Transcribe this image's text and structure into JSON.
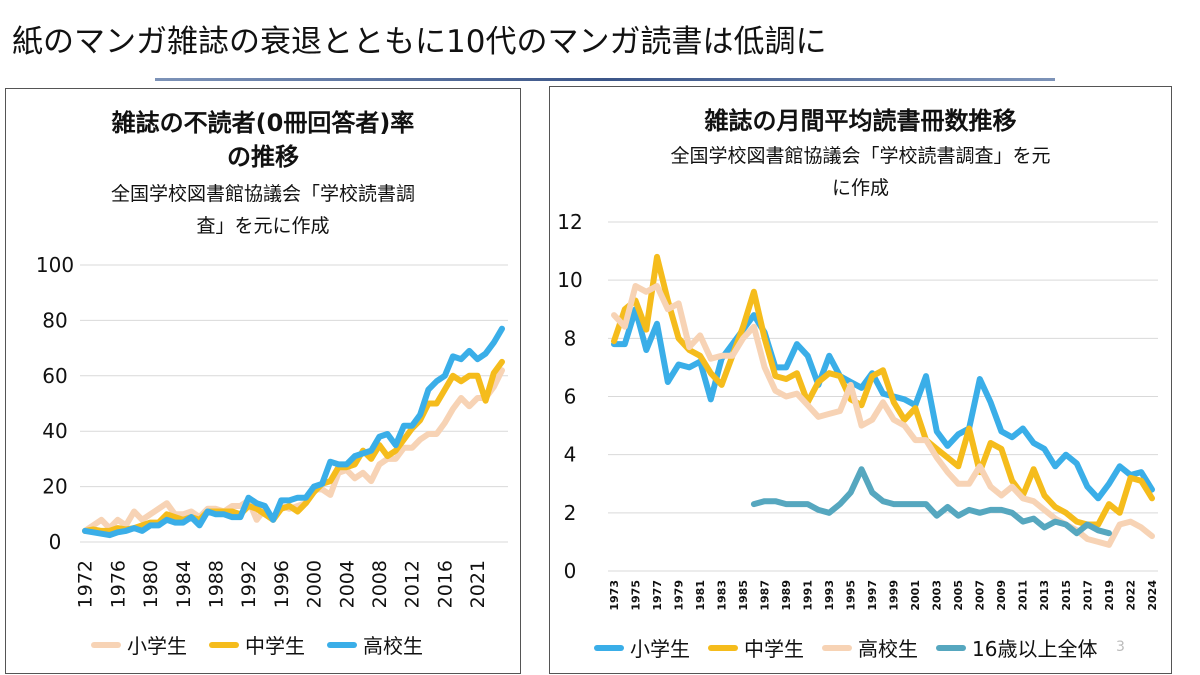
{
  "slide": {
    "title": "紙のマンガ雑誌の衰退とともに10代のマンガ読書は低調に",
    "page_number": "3"
  },
  "colors": {
    "elementary": "#3aaee8",
    "middle": "#f5bc1c",
    "high": "#f7d3b5",
    "over16": "#56a7bf",
    "grid": "#d9d9d9",
    "rule": "#3b5588"
  },
  "chart_data": [
    {
      "type": "line",
      "title_line1": "雑誌の不読者(0冊回答者)率",
      "title_line2": "の推移",
      "subtitle_line1": "全国学校図書館協議会「学校読書調",
      "subtitle_line2": "査」を元に作成",
      "xlabel": "",
      "ylabel": "",
      "ylim": [
        0,
        100
      ],
      "yticks": [
        0,
        20,
        40,
        60,
        80,
        100
      ],
      "grid": true,
      "legend": "bottom",
      "categories": [
        "1972",
        "1973",
        "1974",
        "1975",
        "1976",
        "1977",
        "1978",
        "1979",
        "1980",
        "1981",
        "1982",
        "1983",
        "1984",
        "1985",
        "1986",
        "1987",
        "1988",
        "1989",
        "1990",
        "1991",
        "1992",
        "1993",
        "1994",
        "1995",
        "1996",
        "1997",
        "1998",
        "1999",
        "2000",
        "2001",
        "2002",
        "2003",
        "2004",
        "2005",
        "2006",
        "2007",
        "2008",
        "2009",
        "2010",
        "2011",
        "2012",
        "2013",
        "2014",
        "2015",
        "2016",
        "2017",
        "2018",
        "2019",
        "2021",
        "2022",
        "2023",
        "2024"
      ],
      "series": [
        {
          "name": "小学生",
          "color_key": "high",
          "values": [
            4,
            6,
            8,
            5,
            8,
            6,
            11,
            8,
            10,
            12,
            14,
            10,
            10,
            11,
            9,
            12,
            12,
            11,
            13,
            13,
            15,
            8,
            12,
            8,
            13,
            12,
            13,
            14,
            19,
            19,
            17,
            25,
            26,
            23,
            25,
            22,
            28,
            30,
            30,
            34,
            34,
            37,
            39,
            39,
            43,
            48,
            52,
            49,
            52,
            52,
            56,
            62
          ]
        },
        {
          "name": "中学生",
          "color_key": "middle",
          "values": [
            4,
            4.5,
            4,
            4,
            5,
            4.5,
            5,
            6,
            7,
            7,
            10,
            9,
            8,
            9,
            8,
            11,
            11,
            11,
            11,
            10,
            13,
            12,
            10,
            8,
            12,
            13,
            11,
            14,
            18,
            21,
            22,
            27,
            27,
            28,
            33,
            30,
            35,
            31,
            33,
            37,
            41,
            44,
            50,
            50,
            55,
            60,
            58,
            60,
            60,
            51,
            61,
            65
          ]
        },
        {
          "name": "高校生",
          "color_key": "elementary",
          "values": [
            4,
            3.5,
            3,
            2.5,
            3.5,
            4,
            5,
            4,
            6,
            6,
            8,
            7,
            7,
            9,
            6,
            11,
            10,
            10,
            9,
            9,
            16,
            14,
            13,
            8,
            15,
            15,
            16,
            16,
            20,
            21,
            29,
            28,
            28,
            31,
            32,
            33,
            38,
            39,
            35,
            42,
            42,
            46,
            55,
            58,
            60,
            67,
            66,
            69,
            66,
            68,
            72,
            77
          ]
        }
      ]
    },
    {
      "type": "line",
      "title_line1": "雑誌の月間平均読書冊数推移",
      "subtitle_line1": "全国学校図書館協議会「学校読書調査」を元",
      "subtitle_line2": "に作成",
      "xlabel": "",
      "ylabel": "",
      "ylim": [
        0,
        12
      ],
      "yticks": [
        0,
        2,
        4,
        6,
        8,
        10,
        12
      ],
      "grid": true,
      "legend": "bottom",
      "categories": [
        "1973",
        "1974",
        "1975",
        "1976",
        "1977",
        "1978",
        "1979",
        "1980",
        "1981",
        "1982",
        "1983",
        "1984",
        "1985",
        "1986",
        "1987",
        "1988",
        "1989",
        "1990",
        "1991",
        "1992",
        "1993",
        "1994",
        "1995",
        "1996",
        "1997",
        "1998",
        "1999",
        "2000",
        "2001",
        "2002",
        "2003",
        "2004",
        "2005",
        "2006",
        "2007",
        "2008",
        "2009",
        "2010",
        "2011",
        "2012",
        "2013",
        "2014",
        "2015",
        "2016",
        "2017",
        "2018",
        "2019",
        "2021",
        "2022",
        "2023",
        "2024"
      ],
      "series": [
        {
          "name": "小学生",
          "color_key": "elementary",
          "values": [
            7.8,
            7.8,
            9.0,
            7.6,
            8.5,
            6.5,
            7.1,
            7.0,
            7.2,
            5.9,
            7.3,
            7.8,
            8.3,
            8.8,
            8.2,
            7.0,
            7.0,
            7.8,
            7.4,
            6.4,
            7.4,
            6.7,
            6.5,
            6.3,
            6.8,
            6.1,
            6.0,
            5.9,
            5.7,
            6.7,
            4.8,
            4.3,
            4.7,
            4.9,
            6.6,
            5.8,
            4.8,
            4.6,
            4.9,
            4.4,
            4.2,
            3.6,
            4.0,
            3.7,
            2.9,
            2.5,
            3.0,
            3.6,
            3.3,
            3.4,
            2.8
          ]
        },
        {
          "name": "中学生",
          "color_key": "middle",
          "values": [
            7.9,
            9.0,
            9.3,
            8.3,
            10.8,
            9.3,
            8.0,
            7.6,
            7.4,
            6.8,
            6.4,
            7.4,
            8.4,
            9.6,
            8.0,
            6.7,
            6.6,
            6.8,
            5.8,
            6.5,
            6.8,
            6.7,
            5.9,
            5.7,
            6.7,
            6.9,
            5.8,
            5.2,
            5.6,
            4.5,
            4.2,
            3.9,
            3.6,
            4.9,
            3.4,
            4.4,
            4.2,
            3.1,
            2.6,
            3.5,
            2.6,
            2.2,
            2.0,
            1.7,
            1.6,
            1.6,
            2.3,
            2.0,
            3.2,
            3.1,
            2.5
          ]
        },
        {
          "name": "高校生",
          "color_key": "high",
          "values": [
            8.8,
            8.4,
            9.8,
            9.6,
            9.8,
            9.0,
            9.2,
            7.7,
            8.1,
            7.3,
            7.4,
            7.4,
            8.0,
            8.4,
            7.0,
            6.2,
            6.0,
            6.1,
            5.7,
            5.3,
            5.4,
            5.5,
            6.4,
            5.0,
            5.2,
            5.8,
            5.2,
            5.0,
            4.5,
            4.5,
            3.9,
            3.4,
            3.0,
            3.0,
            3.6,
            2.9,
            2.6,
            2.9,
            2.5,
            2.4,
            2.1,
            1.8,
            1.6,
            1.4,
            1.1,
            1.0,
            0.9,
            1.6,
            1.7,
            1.5,
            1.2
          ]
        },
        {
          "name": "16歳以上全体",
          "color_key": "over16",
          "values": [
            null,
            null,
            null,
            null,
            null,
            null,
            null,
            null,
            null,
            null,
            null,
            null,
            null,
            2.3,
            2.4,
            2.4,
            2.3,
            2.3,
            2.3,
            2.1,
            2.0,
            2.3,
            2.7,
            3.5,
            2.7,
            2.4,
            2.3,
            2.3,
            2.3,
            2.3,
            1.9,
            2.2,
            1.9,
            2.1,
            2.0,
            2.1,
            2.1,
            2.0,
            1.7,
            1.8,
            1.5,
            1.7,
            1.6,
            1.3,
            1.6,
            1.4,
            1.3,
            null,
            null,
            null,
            null
          ]
        }
      ]
    }
  ]
}
